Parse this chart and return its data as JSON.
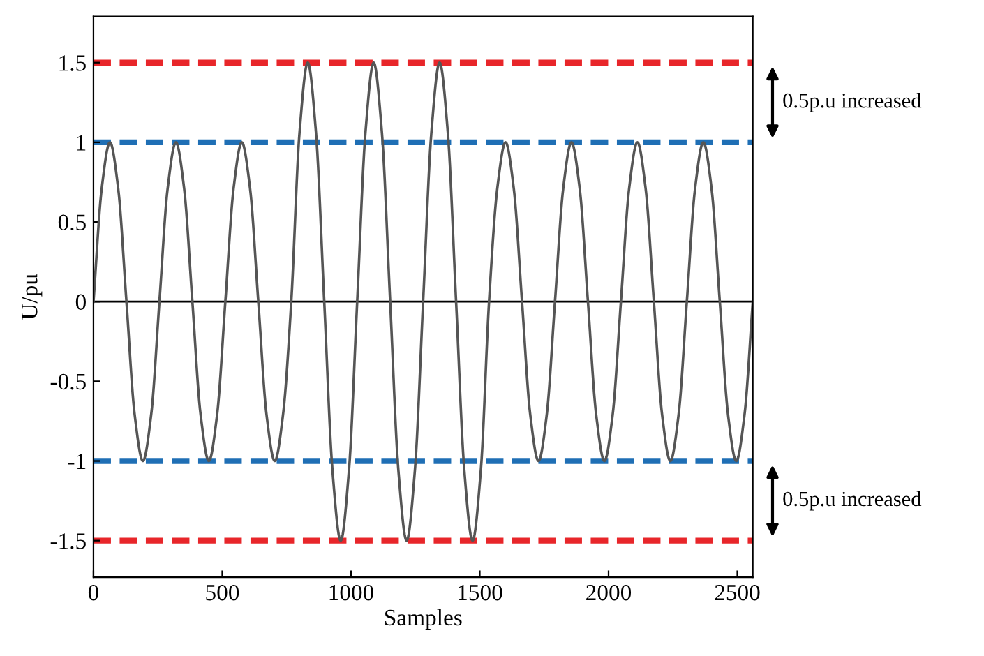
{
  "chart_data": {
    "type": "line",
    "xlabel": "Samples",
    "ylabel": "U/pu",
    "xlim": [
      0,
      2560
    ],
    "ylim": [
      -1.73,
      1.79
    ],
    "xticks": [
      0,
      500,
      1000,
      1500,
      2000,
      2500
    ],
    "yticks": [
      {
        "value": -1.5,
        "label": "-1.5"
      },
      {
        "value": -1,
        "label": "-1"
      },
      {
        "value": -0.5,
        "label": "-0.5"
      },
      {
        "value": 0,
        "label": "0"
      },
      {
        "value": 0.5,
        "label": "0.5"
      },
      {
        "value": 1,
        "label": "1"
      },
      {
        "value": 1.5,
        "label": "1.5"
      }
    ],
    "grid": false,
    "line_style": "solid",
    "marker": "none",
    "series": [
      {
        "color": "#555555",
        "x": [
          0,
          32,
          64,
          96,
          128,
          160,
          192,
          224,
          256,
          288,
          320,
          352,
          384,
          416,
          448,
          480,
          512,
          544,
          576,
          608,
          640,
          672,
          704,
          736,
          768,
          800,
          832,
          864,
          896,
          928,
          960,
          992,
          1024,
          1056,
          1088,
          1120,
          1152,
          1184,
          1216,
          1248,
          1280,
          1312,
          1344,
          1376,
          1408,
          1440,
          1472,
          1504,
          1536,
          1568,
          1600,
          1632,
          1664,
          1696,
          1728,
          1760,
          1792,
          1824,
          1856,
          1888,
          1920,
          1952,
          1984,
          2016,
          2048,
          2080,
          2112,
          2144,
          2176,
          2208,
          2240,
          2272,
          2304,
          2336,
          2368,
          2400,
          2432,
          2464,
          2496,
          2528,
          2560
        ],
        "values": [
          0,
          0.71,
          1,
          0.71,
          0,
          -0.71,
          -1,
          -0.71,
          0,
          0.71,
          1,
          0.71,
          0,
          -0.71,
          -1,
          -0.71,
          0,
          0.71,
          1,
          0.71,
          0,
          -0.71,
          -1,
          -0.71,
          0,
          1.06,
          1.5,
          1.06,
          0,
          -1.06,
          -1.5,
          -1.06,
          0,
          1.06,
          1.5,
          1.06,
          0,
          -1.06,
          -1.5,
          -1.06,
          0,
          1.06,
          1.5,
          1.06,
          0,
          -1.06,
          -1.5,
          -1.06,
          0,
          0.71,
          1,
          0.71,
          0,
          -0.71,
          -1,
          -0.71,
          0,
          0.71,
          1,
          0.71,
          0,
          -0.71,
          -1,
          -0.71,
          0,
          0.71,
          1,
          0.71,
          0,
          -0.71,
          -1,
          -0.71,
          0,
          0.71,
          1,
          0.71,
          0,
          -0.71,
          -1,
          -0.71,
          0
        ]
      }
    ],
    "ref_lines": [
      {
        "axis": "y",
        "value": 1.5,
        "color": "#e8262a",
        "line_style": "dashed"
      },
      {
        "axis": "y",
        "value": 1,
        "color": "#1f6fb5",
        "line_style": "dashed"
      },
      {
        "axis": "y",
        "value": 0,
        "color": "#000000",
        "line_style": "solid"
      },
      {
        "axis": "y",
        "value": -1,
        "color": "#1f6fb5",
        "line_style": "dashed"
      },
      {
        "axis": "y",
        "value": -1.5,
        "color": "#e8262a",
        "line_style": "dashed"
      }
    ],
    "annotations": [
      "0.5p.u increased",
      "0.5p.u increased"
    ]
  }
}
